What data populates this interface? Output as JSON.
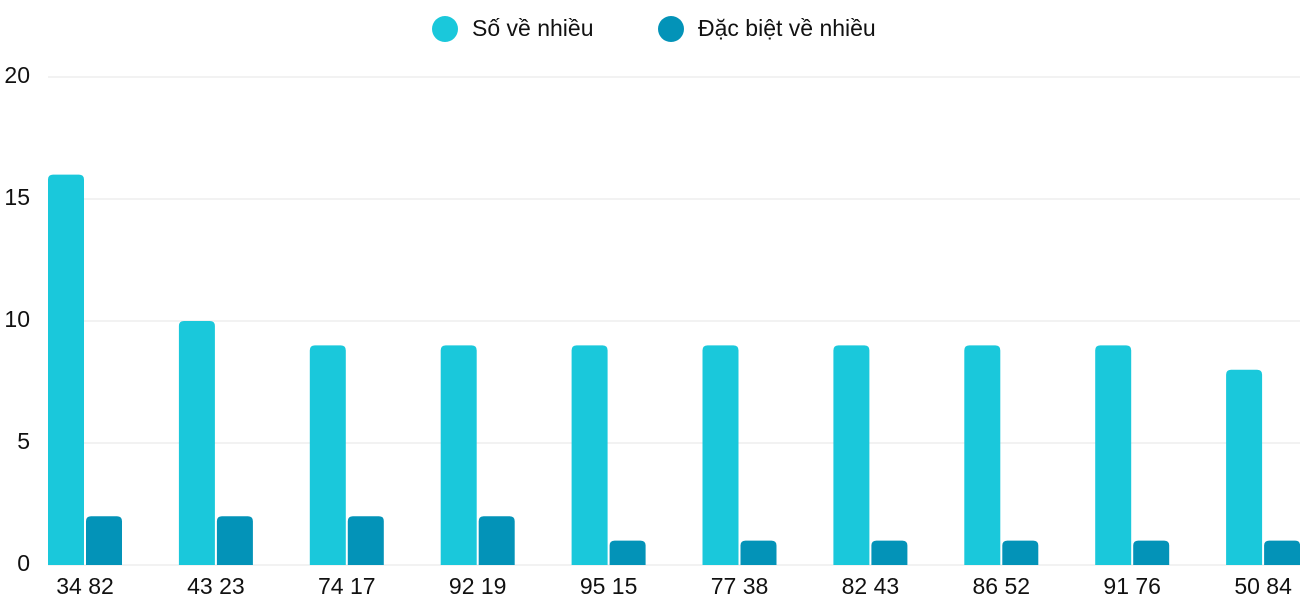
{
  "chart_data": {
    "type": "bar",
    "categories": [
      "34 82",
      "43 23",
      "74 17",
      "92 19",
      "95 15",
      "77 38",
      "82 43",
      "86 52",
      "91 76",
      "50 84"
    ],
    "series": [
      {
        "name": "Số về nhiều",
        "color": "#1ac8db",
        "values": [
          16,
          10,
          9,
          9,
          9,
          9,
          9,
          9,
          9,
          8
        ]
      },
      {
        "name": "Đặc biệt về nhiều",
        "color": "#0393b8",
        "values": [
          2,
          2,
          2,
          2,
          1,
          1,
          1,
          1,
          1,
          1
        ]
      }
    ],
    "ylim": [
      0,
      20
    ],
    "yticks": [
      0,
      5,
      10,
      15,
      20
    ],
    "grid": true
  }
}
